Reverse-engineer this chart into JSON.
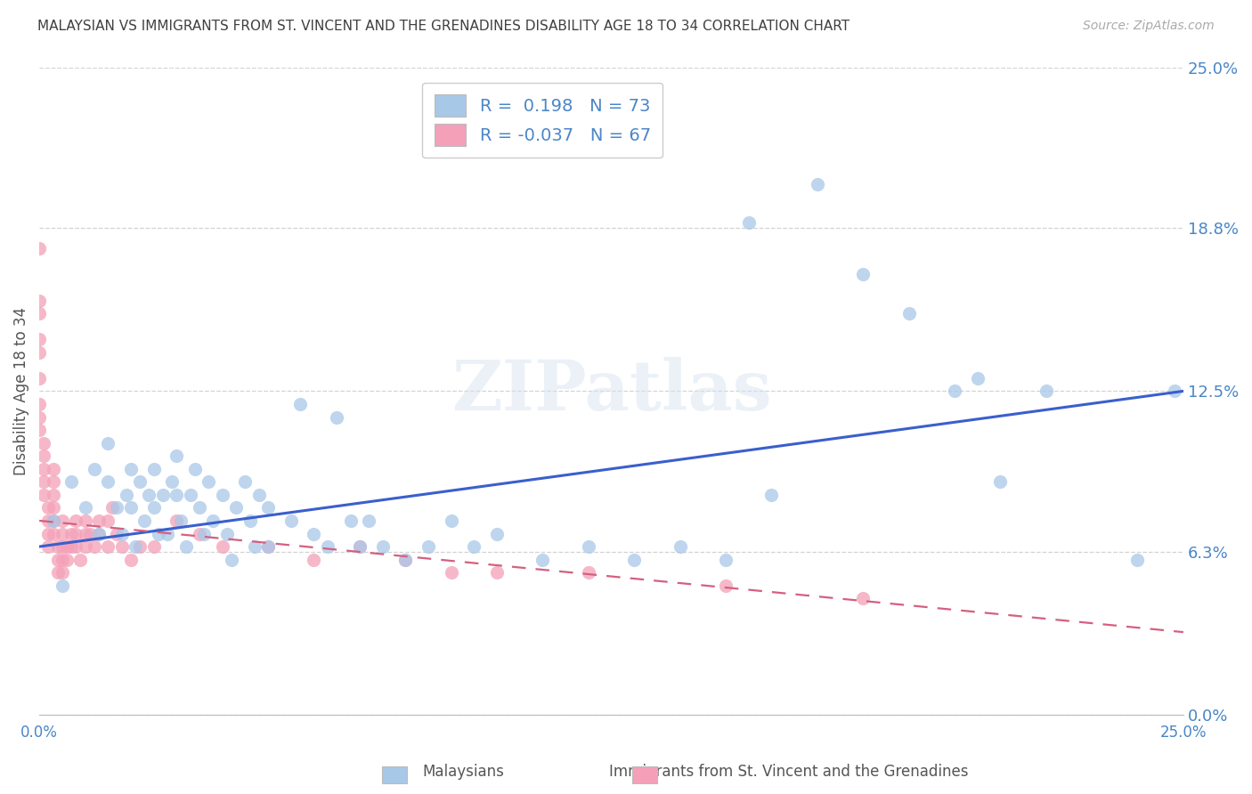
{
  "title": "MALAYSIAN VS IMMIGRANTS FROM ST. VINCENT AND THE GRENADINES DISABILITY AGE 18 TO 34 CORRELATION CHART",
  "source": "Source: ZipAtlas.com",
  "ylabel": "Disability Age 18 to 34",
  "xlim": [
    0.0,
    0.25
  ],
  "ylim": [
    0.0,
    0.25
  ],
  "ytick_labels": [
    "0.0%",
    "6.3%",
    "12.5%",
    "18.8%",
    "25.0%"
  ],
  "ytick_values": [
    0.0,
    0.063,
    0.125,
    0.188,
    0.25
  ],
  "xtick_labels": [
    "0.0%",
    "25.0%"
  ],
  "xtick_values": [
    0.0,
    0.25
  ],
  "r_blue": 0.198,
  "n_blue": 73,
  "r_pink": -0.037,
  "n_pink": 67,
  "blue_color": "#a8c8e8",
  "pink_color": "#f4a0b8",
  "blue_line_color": "#3a5fcd",
  "pink_line_color": "#d46080",
  "grid_color": "#c8c8c8",
  "title_color": "#404040",
  "right_label_color": "#4a86c8",
  "watermark": "ZIPatlas",
  "blue_scatter": [
    [
      0.003,
      0.075
    ],
    [
      0.005,
      0.05
    ],
    [
      0.007,
      0.09
    ],
    [
      0.01,
      0.08
    ],
    [
      0.012,
      0.095
    ],
    [
      0.013,
      0.07
    ],
    [
      0.015,
      0.105
    ],
    [
      0.015,
      0.09
    ],
    [
      0.017,
      0.08
    ],
    [
      0.018,
      0.07
    ],
    [
      0.019,
      0.085
    ],
    [
      0.02,
      0.095
    ],
    [
      0.02,
      0.08
    ],
    [
      0.021,
      0.065
    ],
    [
      0.022,
      0.09
    ],
    [
      0.023,
      0.075
    ],
    [
      0.024,
      0.085
    ],
    [
      0.025,
      0.095
    ],
    [
      0.025,
      0.08
    ],
    [
      0.026,
      0.07
    ],
    [
      0.027,
      0.085
    ],
    [
      0.028,
      0.07
    ],
    [
      0.029,
      0.09
    ],
    [
      0.03,
      0.1
    ],
    [
      0.03,
      0.085
    ],
    [
      0.031,
      0.075
    ],
    [
      0.032,
      0.065
    ],
    [
      0.033,
      0.085
    ],
    [
      0.034,
      0.095
    ],
    [
      0.035,
      0.08
    ],
    [
      0.036,
      0.07
    ],
    [
      0.037,
      0.09
    ],
    [
      0.038,
      0.075
    ],
    [
      0.04,
      0.085
    ],
    [
      0.041,
      0.07
    ],
    [
      0.042,
      0.06
    ],
    [
      0.043,
      0.08
    ],
    [
      0.045,
      0.09
    ],
    [
      0.046,
      0.075
    ],
    [
      0.047,
      0.065
    ],
    [
      0.048,
      0.085
    ],
    [
      0.05,
      0.08
    ],
    [
      0.05,
      0.065
    ],
    [
      0.055,
      0.075
    ],
    [
      0.057,
      0.12
    ],
    [
      0.06,
      0.07
    ],
    [
      0.063,
      0.065
    ],
    [
      0.065,
      0.115
    ],
    [
      0.068,
      0.075
    ],
    [
      0.07,
      0.065
    ],
    [
      0.072,
      0.075
    ],
    [
      0.075,
      0.065
    ],
    [
      0.08,
      0.06
    ],
    [
      0.085,
      0.065
    ],
    [
      0.09,
      0.075
    ],
    [
      0.095,
      0.065
    ],
    [
      0.1,
      0.07
    ],
    [
      0.11,
      0.06
    ],
    [
      0.12,
      0.065
    ],
    [
      0.13,
      0.06
    ],
    [
      0.14,
      0.065
    ],
    [
      0.15,
      0.06
    ],
    [
      0.155,
      0.19
    ],
    [
      0.16,
      0.085
    ],
    [
      0.17,
      0.205
    ],
    [
      0.18,
      0.17
    ],
    [
      0.19,
      0.155
    ],
    [
      0.2,
      0.125
    ],
    [
      0.205,
      0.13
    ],
    [
      0.21,
      0.09
    ],
    [
      0.22,
      0.125
    ],
    [
      0.24,
      0.06
    ],
    [
      0.248,
      0.125
    ]
  ],
  "pink_scatter": [
    [
      0.0,
      0.18
    ],
    [
      0.0,
      0.16
    ],
    [
      0.0,
      0.155
    ],
    [
      0.0,
      0.145
    ],
    [
      0.0,
      0.14
    ],
    [
      0.0,
      0.13
    ],
    [
      0.0,
      0.12
    ],
    [
      0.0,
      0.115
    ],
    [
      0.0,
      0.11
    ],
    [
      0.001,
      0.105
    ],
    [
      0.001,
      0.1
    ],
    [
      0.001,
      0.095
    ],
    [
      0.001,
      0.09
    ],
    [
      0.001,
      0.085
    ],
    [
      0.002,
      0.08
    ],
    [
      0.002,
      0.075
    ],
    [
      0.002,
      0.07
    ],
    [
      0.002,
      0.065
    ],
    [
      0.003,
      0.095
    ],
    [
      0.003,
      0.09
    ],
    [
      0.003,
      0.085
    ],
    [
      0.003,
      0.08
    ],
    [
      0.003,
      0.075
    ],
    [
      0.003,
      0.07
    ],
    [
      0.004,
      0.065
    ],
    [
      0.004,
      0.06
    ],
    [
      0.004,
      0.055
    ],
    [
      0.005,
      0.075
    ],
    [
      0.005,
      0.07
    ],
    [
      0.005,
      0.065
    ],
    [
      0.005,
      0.06
    ],
    [
      0.005,
      0.055
    ],
    [
      0.006,
      0.065
    ],
    [
      0.006,
      0.06
    ],
    [
      0.007,
      0.07
    ],
    [
      0.007,
      0.065
    ],
    [
      0.008,
      0.075
    ],
    [
      0.008,
      0.07
    ],
    [
      0.008,
      0.065
    ],
    [
      0.009,
      0.06
    ],
    [
      0.01,
      0.075
    ],
    [
      0.01,
      0.07
    ],
    [
      0.01,
      0.065
    ],
    [
      0.011,
      0.07
    ],
    [
      0.012,
      0.065
    ],
    [
      0.013,
      0.075
    ],
    [
      0.013,
      0.07
    ],
    [
      0.015,
      0.075
    ],
    [
      0.015,
      0.065
    ],
    [
      0.016,
      0.08
    ],
    [
      0.017,
      0.07
    ],
    [
      0.018,
      0.065
    ],
    [
      0.02,
      0.06
    ],
    [
      0.022,
      0.065
    ],
    [
      0.025,
      0.065
    ],
    [
      0.03,
      0.075
    ],
    [
      0.035,
      0.07
    ],
    [
      0.04,
      0.065
    ],
    [
      0.05,
      0.065
    ],
    [
      0.06,
      0.06
    ],
    [
      0.07,
      0.065
    ],
    [
      0.08,
      0.06
    ],
    [
      0.09,
      0.055
    ],
    [
      0.1,
      0.055
    ],
    [
      0.12,
      0.055
    ],
    [
      0.15,
      0.05
    ],
    [
      0.18,
      0.045
    ]
  ],
  "blue_trend": [
    0.065,
    0.125
  ],
  "pink_trend": [
    0.075,
    0.032
  ]
}
